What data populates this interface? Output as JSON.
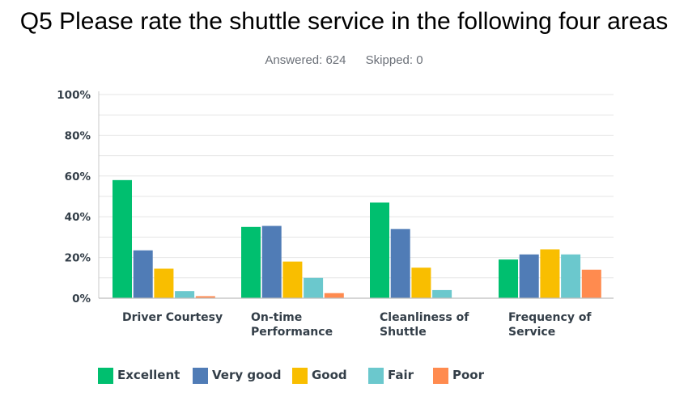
{
  "header": {
    "title": "Q5 Please rate the shuttle service in the following four areas",
    "answered": "Answered: 624",
    "skipped": "Skipped: 0"
  },
  "chart_data": {
    "type": "bar",
    "categories": [
      [
        "Driver Courtesy"
      ],
      [
        "On-time",
        "Performance"
      ],
      [
        "Cleanliness of",
        "Shuttle"
      ],
      [
        "Frequency of",
        "Service"
      ]
    ],
    "series": [
      {
        "name": "Excellent",
        "color": "#00bf6f",
        "values": [
          58,
          35,
          47,
          19
        ]
      },
      {
        "name": "Very good",
        "color": "#507cb6",
        "values": [
          23.5,
          35.5,
          34,
          21.5
        ]
      },
      {
        "name": "Good",
        "color": "#f9be00",
        "values": [
          14.5,
          18,
          15,
          24
        ]
      },
      {
        "name": "Fair",
        "color": "#6bc8cd",
        "values": [
          3.5,
          10,
          4,
          21.5
        ]
      },
      {
        "name": "Poor",
        "color": "#ff8b4f",
        "values": [
          1,
          2.5,
          0,
          14
        ]
      }
    ],
    "yticks": [
      "0%",
      "20%",
      "40%",
      "60%",
      "80%",
      "100%"
    ],
    "ylim": [
      0,
      100
    ],
    "ylabel": "",
    "xlabel": "",
    "grid": true,
    "legend": "bottom"
  }
}
